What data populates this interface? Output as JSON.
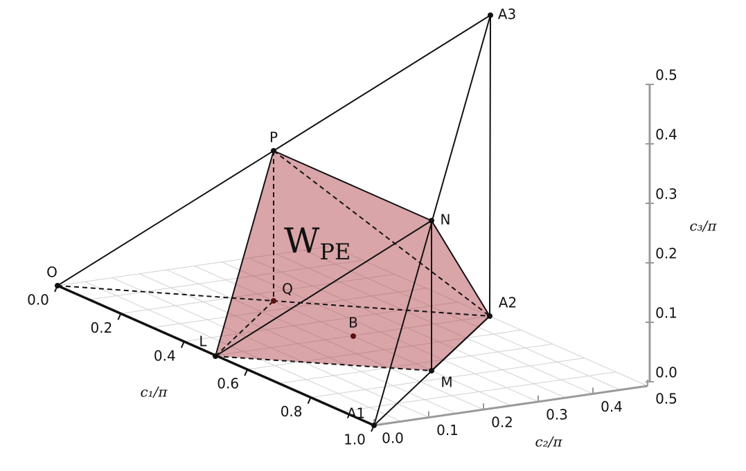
{
  "points": [
    {
      "label": "O"
    },
    {
      "label": "P"
    },
    {
      "label": "A3"
    },
    {
      "label": "N"
    },
    {
      "label": "A2"
    },
    {
      "label": "Q"
    },
    {
      "label": "B"
    },
    {
      "label": "L"
    },
    {
      "label": "M"
    },
    {
      "label": "A1"
    }
  ],
  "region_label": {
    "main": "W",
    "sub": "PE"
  },
  "axes": {
    "c1": {
      "label": "c₁/π",
      "ticks": [
        "0.0",
        "0.2",
        "0.4",
        "0.6",
        "0.8",
        "1.0"
      ]
    },
    "c2": {
      "label": "c₂/π",
      "ticks": [
        "0.0",
        "0.1",
        "0.2",
        "0.3",
        "0.4",
        "0.5"
      ]
    },
    "c3": {
      "label": "c₃/π",
      "ticks": [
        "0.0",
        "0.1",
        "0.2",
        "0.3",
        "0.4",
        "0.5"
      ]
    }
  }
}
